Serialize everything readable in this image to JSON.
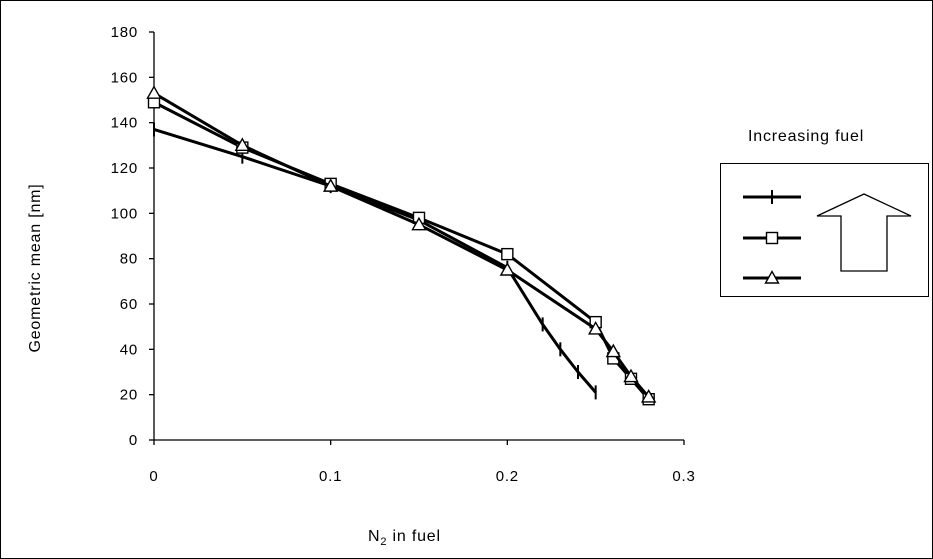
{
  "chart_data": {
    "type": "line",
    "title": "",
    "xlabel_prefix": "N",
    "xlabel_sub": "2",
    "xlabel_suffix": " in fuel",
    "ylabel": "Geometric mean [nm]",
    "xlim": [
      0,
      0.3
    ],
    "ylim": [
      0,
      180
    ],
    "x_ticks": [
      0,
      0.1,
      0.2,
      0.3
    ],
    "x_tick_labels": [
      "0",
      "0.1",
      "0.2",
      "0.3"
    ],
    "y_ticks": [
      0,
      20,
      40,
      60,
      80,
      100,
      120,
      140,
      160,
      180
    ],
    "y_tick_labels": [
      "0",
      "20",
      "40",
      "60",
      "80",
      "100",
      "120",
      "140",
      "160",
      "180"
    ],
    "grid": false,
    "legend": {
      "title": "Increasing fuel",
      "placement": "right",
      "arrow": "up"
    },
    "series": [
      {
        "marker": "vline",
        "color": "#000000",
        "x": [
          0,
          0.05,
          0.1,
          0.15,
          0.2,
          0.22,
          0.23,
          0.24,
          0.25
        ],
        "y": [
          137,
          125,
          112,
          97,
          76,
          51,
          40,
          30,
          21
        ]
      },
      {
        "marker": "square",
        "color": "#000000",
        "x": [
          0,
          0.05,
          0.1,
          0.15,
          0.2,
          0.25,
          0.26,
          0.27,
          0.28
        ],
        "y": [
          149,
          129,
          113,
          98,
          82,
          52,
          36,
          27,
          18
        ]
      },
      {
        "marker": "triangle",
        "color": "#000000",
        "x": [
          0,
          0.05,
          0.1,
          0.15,
          0.2,
          0.25,
          0.26,
          0.27,
          0.28
        ],
        "y": [
          153,
          130,
          112,
          95,
          75,
          49,
          39,
          28,
          19
        ]
      }
    ]
  }
}
